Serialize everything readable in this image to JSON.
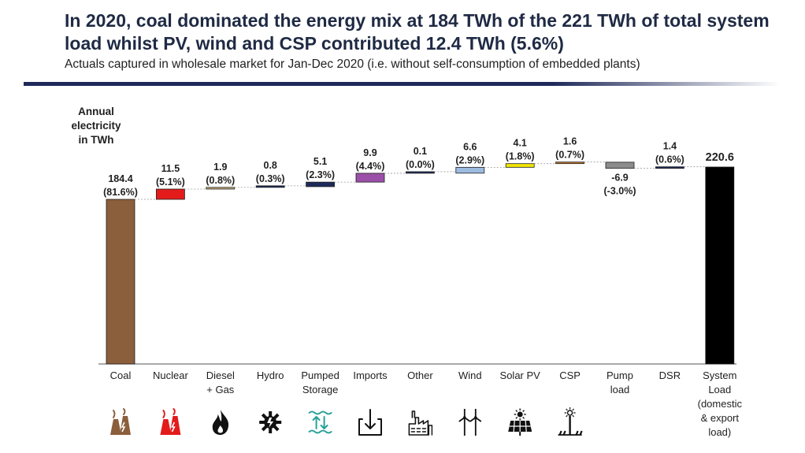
{
  "header": {
    "title": "In 2020, coal dominated the energy mix at 184 TWh of the 221 TWh of total system load whilst PV, wind and CSP contributed 12.4 TWh (5.6%)",
    "subtitle": "Actuals captured in wholesale market for Jan-Dec 2020 (i.e. without self-consumption of embedded plants)"
  },
  "chart_data": {
    "type": "bar",
    "subtype": "waterfall",
    "ylabel_lines": [
      "Annual",
      "electricity",
      "in TWh"
    ],
    "ylim": [
      0,
      222
    ],
    "grid": false,
    "categories": [
      {
        "label_lines": [
          "Coal"
        ],
        "value": 184.4,
        "share": "(81.6%)",
        "kind": "start",
        "color": "#8b5e3c",
        "icon": "power-plant-icon",
        "icon_color": "#8b5e3c"
      },
      {
        "label_lines": [
          "Nuclear"
        ],
        "value": 11.5,
        "share": "(5.1%)",
        "kind": "step",
        "color": "#e31b1b",
        "icon": "nuclear-plant-icon",
        "icon_color": "#e31b1b"
      },
      {
        "label_lines": [
          "Diesel",
          "+ Gas"
        ],
        "value": 1.9,
        "share": "(0.8%)",
        "kind": "step",
        "color": "#c9b07a",
        "icon": "flame-icon",
        "icon_color": "#111111"
      },
      {
        "label_lines": [
          "Hydro"
        ],
        "value": 0.8,
        "share": "(0.3%)",
        "kind": "step",
        "color": "#1f2a5a",
        "icon": "hydro-turbine-icon",
        "icon_color": "#111111"
      },
      {
        "label_lines": [
          "Pumped",
          "Storage"
        ],
        "value": 5.1,
        "share": "(2.3%)",
        "kind": "step",
        "color": "#1f2a5a",
        "icon": "pumped-storage-icon",
        "icon_color": "#2aa198"
      },
      {
        "label_lines": [
          "Imports"
        ],
        "value": 9.9,
        "share": "(4.4%)",
        "kind": "step",
        "color": "#9b4fa8",
        "icon": "import-icon",
        "icon_color": "#111111"
      },
      {
        "label_lines": [
          "Other"
        ],
        "value": 0.1,
        "share": "(0.0%)",
        "kind": "step",
        "color": "#1f2a5a",
        "icon": "factory-icon",
        "icon_color": "#111111"
      },
      {
        "label_lines": [
          "Wind"
        ],
        "value": 6.6,
        "share": "(2.9%)",
        "kind": "step",
        "color": "#9dbbe0",
        "icon": "wind-turbine-icon",
        "icon_color": "#111111"
      },
      {
        "label_lines": [
          "Solar PV"
        ],
        "value": 4.1,
        "share": "(1.8%)",
        "kind": "step",
        "color": "#f3e600",
        "icon": "solar-panel-icon",
        "icon_color": "#111111"
      },
      {
        "label_lines": [
          "CSP"
        ],
        "value": 1.6,
        "share": "(0.7%)",
        "kind": "step",
        "color": "#c87a2a",
        "icon": "csp-tower-icon",
        "icon_color": "#111111"
      },
      {
        "label_lines": [
          "Pump",
          "load"
        ],
        "value": -6.9,
        "share": "(-3.0%)",
        "kind": "step",
        "color": "#8c8c8c",
        "icon": "",
        "icon_color": ""
      },
      {
        "label_lines": [
          "DSR"
        ],
        "value": 1.4,
        "share": "(0.6%)",
        "kind": "step",
        "color": "#1f2a5a",
        "icon": "",
        "icon_color": ""
      },
      {
        "label_lines": [
          "System",
          "Load",
          "(domestic",
          "& export",
          "load)"
        ],
        "value": 220.6,
        "share": "",
        "kind": "total",
        "color": "#000000",
        "icon": "",
        "icon_color": ""
      }
    ]
  }
}
